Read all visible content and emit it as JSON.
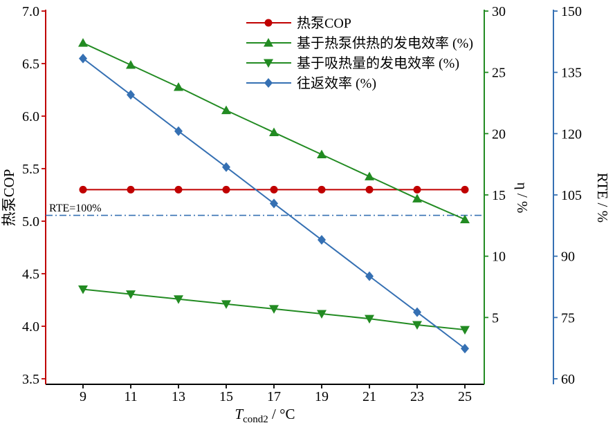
{
  "chart_data": {
    "type": "line",
    "x": [
      9,
      11,
      13,
      15,
      17,
      19,
      21,
      23,
      25
    ],
    "series": [
      {
        "key": "cop",
        "name": "热泵COP",
        "axis": "left",
        "marker": "circle",
        "color": "#c00000",
        "values": [
          5.3,
          5.3,
          5.3,
          5.3,
          5.3,
          5.3,
          5.3,
          5.3,
          5.3
        ]
      },
      {
        "key": "eta-hp",
        "name": "基于热泵供热的发电效率 (%)",
        "axis": "eta",
        "marker": "triangle-up",
        "color": "#228b22",
        "values": [
          27.4,
          25.6,
          23.8,
          21.9,
          20.1,
          18.3,
          16.5,
          14.7,
          13.0
        ]
      },
      {
        "key": "eta-abs",
        "name": "基于吸热量的发电效率 (%)",
        "axis": "eta",
        "marker": "triangle-down",
        "color": "#228b22",
        "values": [
          7.3,
          6.9,
          6.5,
          6.1,
          5.7,
          5.3,
          4.9,
          4.4,
          4.0
        ]
      },
      {
        "key": "rte",
        "name": "往返效率 (%)",
        "axis": "rte",
        "marker": "diamond",
        "color": "#3570b3",
        "values": [
          138.4,
          129.5,
          120.6,
          111.8,
          102.9,
          94.0,
          85.1,
          76.3,
          67.4
        ]
      }
    ],
    "axes": {
      "x": {
        "label_main": "T",
        "label_sub": "cond2",
        "label_unit": " / °C",
        "ticks": [
          9,
          11,
          13,
          15,
          17,
          19,
          21,
          23,
          25
        ],
        "color": "#000000"
      },
      "left": {
        "label": "热泵COP",
        "color": "#c00000",
        "ticks": [
          "3.5",
          "4.0",
          "4.5",
          "5.0",
          "5.5",
          "6.0",
          "6.5",
          "7.0"
        ],
        "range": [
          3.45,
          7.0
        ]
      },
      "eta": {
        "label": "η / %",
        "color": "#228b22",
        "ticks": [
          5,
          10,
          15,
          20,
          25,
          30
        ],
        "range": [
          0,
          30
        ]
      },
      "rte": {
        "label": "RTE / %",
        "color": "#3570b3",
        "ticks": [
          60,
          75,
          90,
          105,
          120,
          135,
          150
        ],
        "range": [
          60,
          150
        ]
      }
    },
    "reference_line": {
      "label": "RTE=100%",
      "value": 100,
      "axis": "rte",
      "style": "dash-dot",
      "color": "#3570b3"
    },
    "legend_position": "top-center",
    "grid": false
  }
}
